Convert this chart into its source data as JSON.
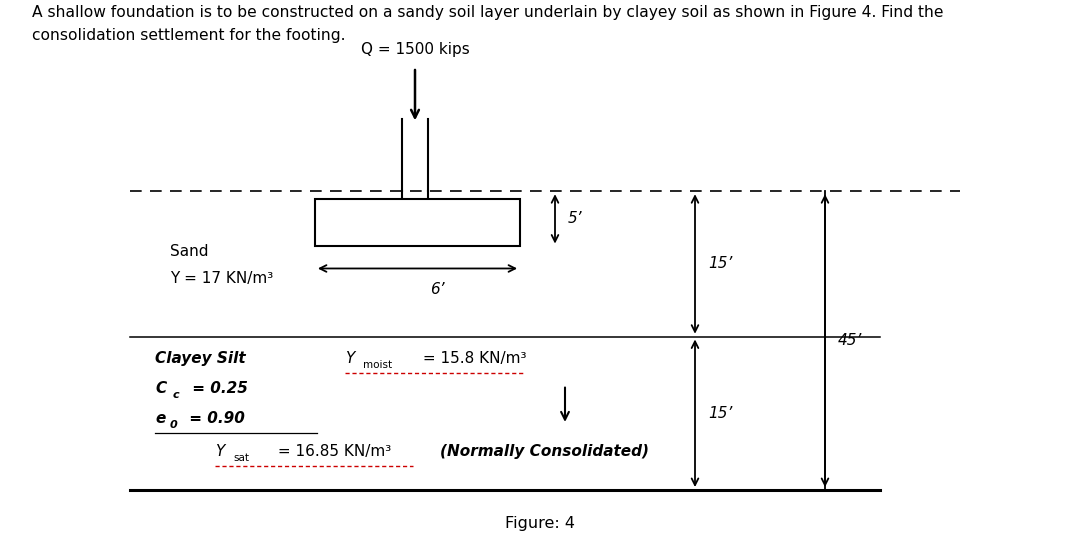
{
  "title_text": "A shallow foundation is to be constructed on a sandy soil layer underlain by clayey soil as shown in Figure 4. Find the\nconsolidation settlement for the footing.",
  "figure_label": "Figure: 4",
  "load_label": "Q = 1500 kips",
  "bg_color": "#ffffff",
  "line_color": "#000000",
  "sand_label": "Sand",
  "sand_gamma": "Y = 17 KN/m³",
  "clay_label1": "Clayey Silt",
  "clay_label2": "C_c = 0.25",
  "clay_label3": "e_0 = 0.90",
  "normally_consolidated": "(Normally Consolidated)",
  "dim_5ft": "5’",
  "dim_6ft": "6’",
  "dim_15ft_sand": "15’",
  "dim_15ft_clay": "15’",
  "dim_45ft": "45’"
}
